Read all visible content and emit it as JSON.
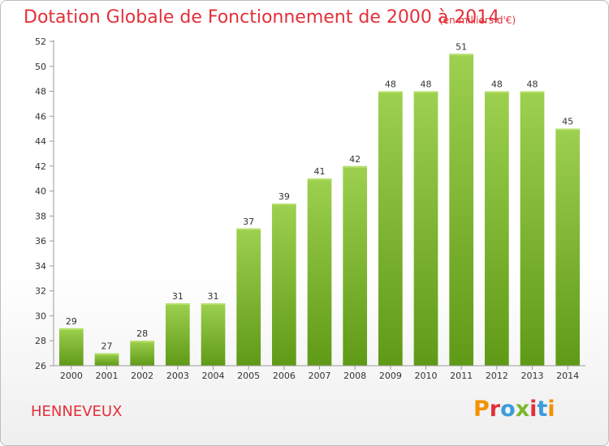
{
  "header": {
    "title": "Dotation Globale de Fonctionnement de 2000 à 2014",
    "subtitle": "(en milliers d'€)"
  },
  "footer": {
    "commune": "HENNEVEUX",
    "logo_text": "Proxiti"
  },
  "colors": {
    "title": "#e3303a",
    "bar_top": "#9dd04f",
    "bar_bottom": "#5f9a16",
    "logo_letters": [
      "#f39200",
      "#e3303a",
      "#3a9bdc",
      "#7cb82f",
      "#e3303a",
      "#3a9bdc",
      "#f39200"
    ]
  },
  "chart_data": {
    "type": "bar",
    "title": "Dotation Globale de Fonctionnement de 2000 à 2014",
    "subtitle": "(en milliers d'€)",
    "categories": [
      "2000",
      "2001",
      "2002",
      "2003",
      "2004",
      "2005",
      "2006",
      "2007",
      "2008",
      "2009",
      "2010",
      "2011",
      "2012",
      "2013",
      "2014"
    ],
    "values": [
      29,
      27,
      28,
      31,
      31,
      37,
      39,
      41,
      42,
      48,
      48,
      51,
      48,
      48,
      45
    ],
    "xlabel": "",
    "ylabel": "",
    "ylim": [
      26,
      52
    ],
    "yticks": [
      26,
      28,
      30,
      32,
      34,
      36,
      38,
      40,
      42,
      44,
      46,
      48,
      50,
      52
    ],
    "grid": false,
    "legend": "none",
    "data_labels": true
  }
}
